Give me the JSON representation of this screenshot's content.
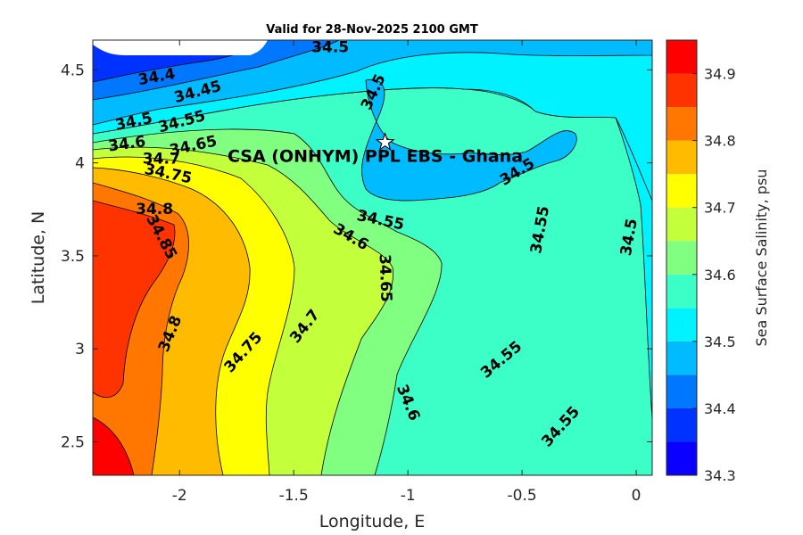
{
  "chart_data": {
    "type": "contour",
    "title": "Valid for 28-Nov-2025 2100 GMT",
    "xlabel": "Longitude, E",
    "ylabel": "Latitude, N",
    "xlim": [
      -2.38,
      0.07
    ],
    "ylim": [
      2.32,
      4.66
    ],
    "xticks": [
      -2,
      -1.5,
      -1,
      -0.5,
      0
    ],
    "xtick_labels": [
      "-2",
      "-1.5",
      "-1",
      "-0.5",
      "0"
    ],
    "yticks": [
      2.5,
      3,
      3.5,
      4,
      4.5
    ],
    "ytick_labels": [
      "2.5",
      "3",
      "3.5",
      "4",
      "4.5"
    ],
    "colorbar": {
      "label": "Sea Surface Salinity, psu",
      "range": [
        34.3,
        34.95
      ],
      "ticks": [
        34.3,
        34.4,
        34.5,
        34.6,
        34.7,
        34.8,
        34.9
      ],
      "tick_labels": [
        "34.3",
        "34.4",
        "34.5",
        "34.6",
        "34.7",
        "34.8",
        "34.9"
      ],
      "levels": [
        {
          "min": 34.3,
          "max": 34.35,
          "color": "#0a00ff"
        },
        {
          "min": 34.35,
          "max": 34.4,
          "color": "#0032ff"
        },
        {
          "min": 34.4,
          "max": 34.45,
          "color": "#0077ff"
        },
        {
          "min": 34.45,
          "max": 34.5,
          "color": "#00bbff"
        },
        {
          "min": 34.5,
          "max": 34.55,
          "color": "#00f2ff"
        },
        {
          "min": 34.55,
          "max": 34.6,
          "color": "#3cffc8"
        },
        {
          "min": 34.6,
          "max": 34.65,
          "color": "#80ff80"
        },
        {
          "min": 34.65,
          "max": 34.7,
          "color": "#c4ff3b"
        },
        {
          "min": 34.7,
          "max": 34.75,
          "color": "#ffff00"
        },
        {
          "min": 34.75,
          "max": 34.8,
          "color": "#ffbb00"
        },
        {
          "min": 34.8,
          "max": 34.85,
          "color": "#ff7700"
        },
        {
          "min": 34.85,
          "max": 34.9,
          "color": "#ff3300"
        },
        {
          "min": 34.9,
          "max": 34.95,
          "color": "#ff0000"
        }
      ]
    },
    "contour_labels": [
      {
        "text": "34.5",
        "lon": -1.34,
        "lat": 4.62,
        "angle": 0
      },
      {
        "text": "34.4",
        "lon": -2.1,
        "lat": 4.46,
        "angle": -10
      },
      {
        "text": "34.45",
        "lon": -1.92,
        "lat": 4.38,
        "angle": -15
      },
      {
        "text": "34.5",
        "lon": -2.2,
        "lat": 4.22,
        "angle": -12
      },
      {
        "text": "34.55",
        "lon": -1.99,
        "lat": 4.22,
        "angle": -15
      },
      {
        "text": "34.6",
        "lon": -2.23,
        "lat": 4.1,
        "angle": -8
      },
      {
        "text": "34.65",
        "lon": -1.94,
        "lat": 4.09,
        "angle": -12
      },
      {
        "text": "34.7",
        "lon": -2.08,
        "lat": 4.02,
        "angle": 0
      },
      {
        "text": "34.75",
        "lon": -2.05,
        "lat": 3.94,
        "angle": 12
      },
      {
        "text": "34.8",
        "lon": -2.11,
        "lat": 3.75,
        "angle": 0
      },
      {
        "text": "34.85",
        "lon": -2.08,
        "lat": 3.6,
        "angle": 62
      },
      {
        "text": "34.5",
        "lon": -1.15,
        "lat": 4.38,
        "angle": -65
      },
      {
        "text": "34.5",
        "lon": -0.52,
        "lat": 3.95,
        "angle": -32
      },
      {
        "text": "34.55",
        "lon": -1.12,
        "lat": 3.69,
        "angle": 12
      },
      {
        "text": "34.6",
        "lon": -1.25,
        "lat": 3.6,
        "angle": 30
      },
      {
        "text": "34.55",
        "lon": -0.42,
        "lat": 3.64,
        "angle": -80
      },
      {
        "text": "34.5",
        "lon": -0.03,
        "lat": 3.6,
        "angle": -80
      },
      {
        "text": "34.65",
        "lon": -1.1,
        "lat": 3.38,
        "angle": 88
      },
      {
        "text": "34.8",
        "lon": -2.04,
        "lat": 3.08,
        "angle": -68
      },
      {
        "text": "34.75",
        "lon": -1.72,
        "lat": 2.98,
        "angle": -48
      },
      {
        "text": "34.7",
        "lon": -1.45,
        "lat": 3.12,
        "angle": -52
      },
      {
        "text": "34.55",
        "lon": -0.59,
        "lat": 2.94,
        "angle": -40
      },
      {
        "text": "34.6",
        "lon": -1.0,
        "lat": 2.71,
        "angle": 68
      },
      {
        "text": "34.55",
        "lon": -0.33,
        "lat": 2.58,
        "angle": -48
      }
    ],
    "site": {
      "name": "CSA (ONHYM) PPL EBS  - Ghana",
      "lon": -1.1,
      "lat": 4.11,
      "marker": "star"
    }
  }
}
